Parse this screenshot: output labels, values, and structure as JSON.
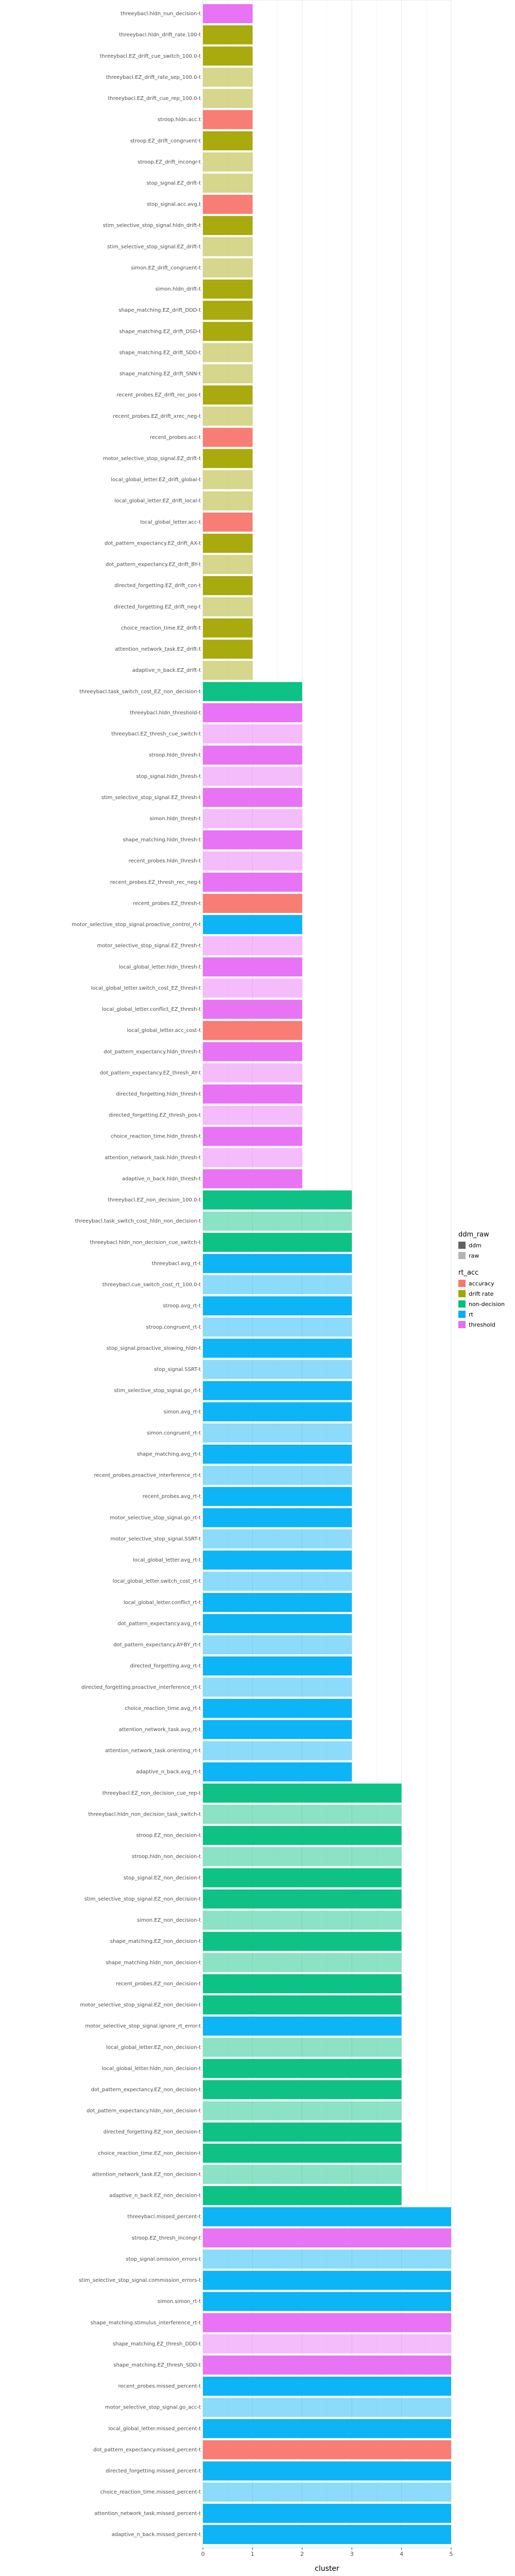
{
  "chart_data": {
    "type": "bar",
    "orientation": "horizontal",
    "xlabel": "cluster",
    "ylabel": "",
    "xlim": [
      0,
      5
    ],
    "xticks": [
      "0",
      "1",
      "2",
      "3",
      "4",
      "5"
    ],
    "grid": true,
    "legend_position": "right",
    "legends": [
      {
        "title": "ddm_raw",
        "entries": [
          {
            "label": "ddm",
            "alpha": 0.95
          },
          {
            "label": "raw",
            "alpha": 0.45
          }
        ]
      },
      {
        "title": "rt_acc",
        "entries": [
          {
            "label": "accuracy",
            "color": "#F8766D"
          },
          {
            "label": "drift rate",
            "color": "#A3A500"
          },
          {
            "label": "non-decision",
            "color": "#00BF7D"
          },
          {
            "label": "rt",
            "color": "#00B0F6"
          },
          {
            "label": "threshold",
            "color": "#E76BF3"
          }
        ]
      }
    ],
    "groups": [
      {
        "cluster": 1,
        "categories": [
          {
            "label": "threeybacl.hldn_nun_decision-t",
            "type": "threshold",
            "raw": false
          },
          {
            "label": "threeybacl.hldn_drift_rate.100-t",
            "type": "drift rate",
            "raw": false
          },
          {
            "label": "threeybacl.EZ_drift_cue_switch_100.0-t",
            "type": "drift rate",
            "raw": false
          },
          {
            "label": "threeybacl.EZ_drift_rate_sep_100.0-t",
            "type": "drift rate",
            "raw": true
          },
          {
            "label": "threeybacl.EZ_drift_cue_rep_100.0-t",
            "type": "drift rate",
            "raw": true
          },
          {
            "label": "stroop.hldn.acc.t",
            "type": "accuracy",
            "raw": false
          },
          {
            "label": "stroop.EZ_drift_congruent-t",
            "type": "drift rate",
            "raw": false
          },
          {
            "label": "stroop.EZ_drift_incongr-t",
            "type": "drift rate",
            "raw": true
          },
          {
            "label": "stop_signal.EZ_drift-t",
            "type": "drift rate",
            "raw": true
          },
          {
            "label": "stop_signal.acc.avg.t",
            "type": "accuracy",
            "raw": false
          },
          {
            "label": "stim_selective_stop_signal.hldn_drift-t",
            "type": "drift rate",
            "raw": false
          },
          {
            "label": "stim_selective_stop_signal.EZ_drift-t",
            "type": "drift rate",
            "raw": true
          },
          {
            "label": "simon.EZ_drift_congruent-t",
            "type": "drift rate",
            "raw": true
          },
          {
            "label": "simon.hldn_drift-t",
            "type": "drift rate",
            "raw": false
          },
          {
            "label": "shape_matching.EZ_drift_DDD-t",
            "type": "drift rate",
            "raw": false
          },
          {
            "label": "shape_matching.EZ_drift_DSD-t",
            "type": "drift rate",
            "raw": false
          },
          {
            "label": "shape_matching.EZ_drift_SDD-t",
            "type": "drift rate",
            "raw": true
          },
          {
            "label": "shape_matching.EZ_drift_SNN-t",
            "type": "drift rate",
            "raw": true
          },
          {
            "label": "recent_probes.EZ_drift_rec_pos-t",
            "type": "drift rate",
            "raw": false
          },
          {
            "label": "recent_probes.EZ_drift_xrec_neg-t",
            "type": "drift rate",
            "raw": true
          },
          {
            "label": "recent_probes.acc-t",
            "type": "accuracy",
            "raw": false
          },
          {
            "label": "motor_selective_stop_signal.EZ_drift-t",
            "type": "drift rate",
            "raw": false
          },
          {
            "label": "local_global_letter.EZ_drift_global-t",
            "type": "drift rate",
            "raw": true
          },
          {
            "label": "local_global_letter.EZ_drift_local-t",
            "type": "drift rate",
            "raw": true
          },
          {
            "label": "local_global_letter.acc-t",
            "type": "accuracy",
            "raw": false
          },
          {
            "label": "dot_pattern_expectancy.EZ_drift_AX-t",
            "type": "drift rate",
            "raw": false
          },
          {
            "label": "dot_pattern_expectancy.EZ_drift_BY-t",
            "type": "drift rate",
            "raw": true
          },
          {
            "label": "directed_forgetting.EZ_drift_con-t",
            "type": "drift rate",
            "raw": false
          },
          {
            "label": "directed_forgetting.EZ_drift_neg-t",
            "type": "drift rate",
            "raw": true
          },
          {
            "label": "choice_reaction_time.EZ_drift-t",
            "type": "drift rate",
            "raw": false
          },
          {
            "label": "attention_network_task.EZ_drift-t",
            "type": "drift rate",
            "raw": false
          },
          {
            "label": "adaptive_n_back.EZ_drift-t",
            "type": "drift rate",
            "raw": true
          }
        ]
      },
      {
        "cluster": 2,
        "categories": [
          {
            "label": "threeybacl.task_switch_cost_EZ_non_decision-t",
            "type": "non-decision",
            "raw": false
          },
          {
            "label": "threeybacl.hldn_threshold-t",
            "type": "threshold",
            "raw": false
          },
          {
            "label": "threeybacl.EZ_thresh_cue_switch-t",
            "type": "threshold",
            "raw": true
          },
          {
            "label": "stroop.hldn_thresh-t",
            "type": "threshold",
            "raw": false
          },
          {
            "label": "stop_signal.hldn_thresh-t",
            "type": "threshold",
            "raw": true
          },
          {
            "label": "stim_selective_stop_signal.EZ_thresh-t",
            "type": "threshold",
            "raw": false
          },
          {
            "label": "simon.hldn_thresh-t",
            "type": "threshold",
            "raw": true
          },
          {
            "label": "shape_matching.hldn_thresh-t",
            "type": "threshold",
            "raw": false
          },
          {
            "label": "recent_probes.hldn_thresh-t",
            "type": "threshold",
            "raw": true
          },
          {
            "label": "recent_probes.EZ_thresh_rec_neg-t",
            "type": "threshold",
            "raw": false
          },
          {
            "label": "recent_probes.EZ_thresh-t",
            "type": "accuracy",
            "raw": false
          },
          {
            "label": "motor_selective_stop_signal.proactive_control_rt-t",
            "type": "rt",
            "raw": false
          },
          {
            "label": "motor_selective_stop_signal.EZ_thresh-t",
            "type": "threshold",
            "raw": true
          },
          {
            "label": "local_global_letter.hldn_thresh-t",
            "type": "threshold",
            "raw": false
          },
          {
            "label": "local_global_letter.switch_cost_EZ_thresh-t",
            "type": "threshold",
            "raw": true
          },
          {
            "label": "local_global_letter.conflict_EZ_thresh-t",
            "type": "threshold",
            "raw": false
          },
          {
            "label": "local_global_letter.acc_cost-t",
            "type": "accuracy",
            "raw": false
          },
          {
            "label": "dot_pattern_expectancy.hldn_thresh-t",
            "type": "threshold",
            "raw": false
          },
          {
            "label": "dot_pattern_expectancy.EZ_thresh_AY-t",
            "type": "threshold",
            "raw": true
          },
          {
            "label": "directed_forgetting.hldn_thresh-t",
            "type": "threshold",
            "raw": false
          },
          {
            "label": "directed_forgetting.EZ_thresh_pos-t",
            "type": "threshold",
            "raw": true
          },
          {
            "label": "choice_reaction_time.hldn_thresh-t",
            "type": "threshold",
            "raw": false
          },
          {
            "label": "attention_network_task.hldn_thresh-t",
            "type": "threshold",
            "raw": true
          },
          {
            "label": "adaptive_n_back.hldn_thresh-t",
            "type": "threshold",
            "raw": false
          }
        ]
      },
      {
        "cluster": 3,
        "categories": [
          {
            "label": "threeybacl.EZ_non_decision_100.0-t",
            "type": "non-decision",
            "raw": false
          },
          {
            "label": "threeybacl.task_switch_cost_hldn_non_decision-t",
            "type": "non-decision",
            "raw": true
          },
          {
            "label": "threeybacl.hldn_non_decision_cue_switch-t",
            "type": "non-decision",
            "raw": false
          },
          {
            "label": "threeybacl.avg_rt-t",
            "type": "rt",
            "raw": false
          },
          {
            "label": "threeybacl.cue_switch_cost_rt_100.0-t",
            "type": "rt",
            "raw": true
          },
          {
            "label": "stroop.avg_rt-t",
            "type": "rt",
            "raw": false
          },
          {
            "label": "stroop.congruent_rt-t",
            "type": "rt",
            "raw": true
          },
          {
            "label": "stop_signal.proactive_slowing_hldn-t",
            "type": "rt",
            "raw": false
          },
          {
            "label": "stop_signal.SSRT-t",
            "type": "rt",
            "raw": true
          },
          {
            "label": "stim_selective_stop_signal.go_rt-t",
            "type": "rt",
            "raw": false
          },
          {
            "label": "simon.avg_rt-t",
            "type": "rt",
            "raw": false
          },
          {
            "label": "simon.congruent_rt-t",
            "type": "rt",
            "raw": true
          },
          {
            "label": "shape_matching.avg_rt-t",
            "type": "rt",
            "raw": false
          },
          {
            "label": "recent_probes.proactive_interference_rt-t",
            "type": "rt",
            "raw": true
          },
          {
            "label": "recent_probes.avg_rt-t",
            "type": "rt",
            "raw": false
          },
          {
            "label": "motor_selective_stop_signal.go_rt-t",
            "type": "rt",
            "raw": false
          },
          {
            "label": "motor_selective_stop_signal.SSRT-t",
            "type": "rt",
            "raw": true
          },
          {
            "label": "local_global_letter.avg_rt-t",
            "type": "rt",
            "raw": false
          },
          {
            "label": "local_global_letter.switch_cost_rt-t",
            "type": "rt",
            "raw": true
          },
          {
            "label": "local_global_letter.conflict_rt-t",
            "type": "rt",
            "raw": false
          },
          {
            "label": "dot_pattern_expectancy.avg_rt-t",
            "type": "rt",
            "raw": false
          },
          {
            "label": "dot_pattern_expectancy.AY-BY_rt-t",
            "type": "rt",
            "raw": true
          },
          {
            "label": "directed_forgetting.avg_rt-t",
            "type": "rt",
            "raw": false
          },
          {
            "label": "directed_forgetting.proactive_interference_rt-t",
            "type": "rt",
            "raw": true
          },
          {
            "label": "choice_reaction_time.avg_rt-t",
            "type": "rt",
            "raw": false
          },
          {
            "label": "attention_network_task.avg_rt-t",
            "type": "rt",
            "raw": false
          },
          {
            "label": "attention_network_task.orienting_rt-t",
            "type": "rt",
            "raw": true
          },
          {
            "label": "adaptive_n_back.avg_rt-t",
            "type": "rt",
            "raw": false
          }
        ]
      },
      {
        "cluster": 4,
        "categories": [
          {
            "label": "threeybacl.EZ_non_decision_cue_rep-t",
            "type": "non-decision",
            "raw": false
          },
          {
            "label": "threeybacl.hldn_non_decision_task_switch-t",
            "type": "non-decision",
            "raw": true
          },
          {
            "label": "stroop.EZ_non_decision-t",
            "type": "non-decision",
            "raw": false
          },
          {
            "label": "stroop.hldn_non_decision-t",
            "type": "non-decision",
            "raw": true
          },
          {
            "label": "stop_signal.EZ_non_decision-t",
            "type": "non-decision",
            "raw": false
          },
          {
            "label": "stim_selective_stop_signal.EZ_non_decision-t",
            "type": "non-decision",
            "raw": false
          },
          {
            "label": "simon.EZ_non_decision-t",
            "type": "non-decision",
            "raw": true
          },
          {
            "label": "shape_matching.EZ_non_decision-t",
            "type": "non-decision",
            "raw": false
          },
          {
            "label": "shape_matching.hldn_non_decision-t",
            "type": "non-decision",
            "raw": true
          },
          {
            "label": "recent_probes.EZ_non_decision-t",
            "type": "non-decision",
            "raw": false
          },
          {
            "label": "motor_selective_stop_signal.EZ_non_decision-t",
            "type": "non-decision",
            "raw": false
          },
          {
            "label": "motor_selective_stop_signal.ignore_rt_error-t",
            "type": "rt",
            "raw": false
          },
          {
            "label": "local_global_letter.EZ_non_decision-t",
            "type": "non-decision",
            "raw": true
          },
          {
            "label": "local_global_letter.hldn_non_decision-t",
            "type": "non-decision",
            "raw": false
          },
          {
            "label": "dot_pattern_expectancy.EZ_non_decision-t",
            "type": "non-decision",
            "raw": false
          },
          {
            "label": "dot_pattern_expectancy.hldn_non_decision-t",
            "type": "non-decision",
            "raw": true
          },
          {
            "label": "directed_forgetting.EZ_non_decision-t",
            "type": "non-decision",
            "raw": false
          },
          {
            "label": "choice_reaction_time.EZ_non_decision-t",
            "type": "non-decision",
            "raw": false
          },
          {
            "label": "attention_network_task.EZ_non_decision-t",
            "type": "non-decision",
            "raw": true
          },
          {
            "label": "adaptive_n_back.EZ_non_decision-t",
            "type": "non-decision",
            "raw": false
          }
        ]
      },
      {
        "cluster": 5,
        "categories": [
          {
            "label": "threeybacl.missed_percent-t",
            "type": "rt",
            "raw": false
          },
          {
            "label": "stroop.EZ_thresh_incongr-t",
            "type": "threshold",
            "raw": false
          },
          {
            "label": "stop_signal.omission_errors-t",
            "type": "rt",
            "raw": true
          },
          {
            "label": "stim_selective_stop_signal.commission_errors-t",
            "type": "rt",
            "raw": false
          },
          {
            "label": "simon.simon_rt-t",
            "type": "rt",
            "raw": false
          },
          {
            "label": "shape_matching.stimulus_interference_rt-t",
            "type": "threshold",
            "raw": false
          },
          {
            "label": "shape_matching.EZ_thresh_DDD-t",
            "type": "threshold",
            "raw": true
          },
          {
            "label": "shape_matching.EZ_thresh_SDD-t",
            "type": "threshold",
            "raw": false
          },
          {
            "label": "recent_probes.missed_percent-t",
            "type": "rt",
            "raw": false
          },
          {
            "label": "motor_selective_stop_signal.go_acc-t",
            "type": "rt",
            "raw": true
          },
          {
            "label": "local_global_letter.missed_percent-t",
            "type": "rt",
            "raw": false
          },
          {
            "label": "dot_pattern_expectancy.missed_percent-t",
            "type": "accuracy",
            "raw": false
          },
          {
            "label": "directed_forgetting.missed_percent-t",
            "type": "rt",
            "raw": false
          },
          {
            "label": "choice_reaction_time.missed_percent-t",
            "type": "rt",
            "raw": true
          },
          {
            "label": "attention_network_task.missed_percent-t",
            "type": "rt",
            "raw": false
          },
          {
            "label": "adaptive_n_back.missed_percent-t",
            "type": "rt",
            "raw": false
          }
        ]
      }
    ]
  }
}
